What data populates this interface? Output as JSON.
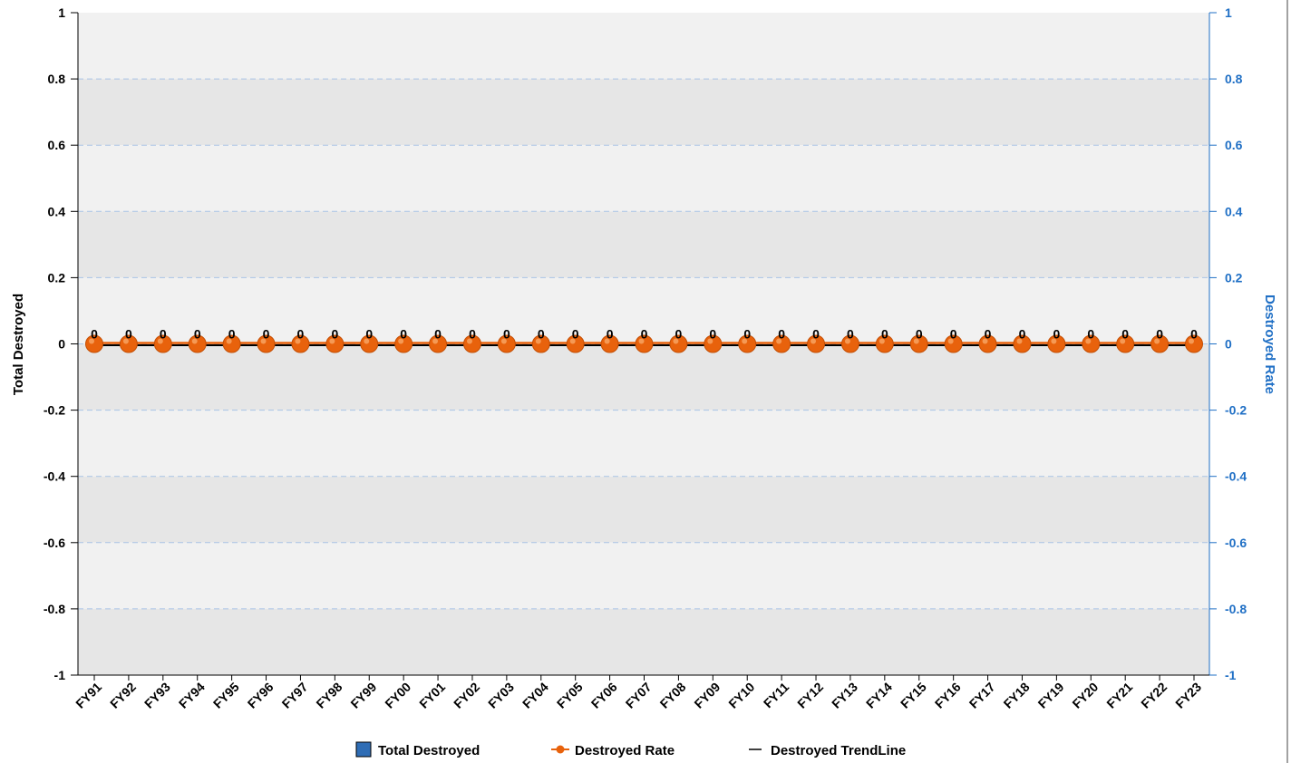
{
  "chart_data": {
    "type": "bar",
    "categories": [
      "FY91",
      "FY92",
      "FY93",
      "FY94",
      "FY95",
      "FY96",
      "FY97",
      "FY98",
      "FY99",
      "FY00",
      "FY01",
      "FY02",
      "FY03",
      "FY04",
      "FY05",
      "FY06",
      "FY07",
      "FY08",
      "FY09",
      "FY10",
      "FY11",
      "FY12",
      "FY13",
      "FY14",
      "FY15",
      "FY16",
      "FY17",
      "FY18",
      "FY19",
      "FY20",
      "FY21",
      "FY22",
      "FY23"
    ],
    "series": [
      {
        "name": "Total Destroyed",
        "type": "bar",
        "axis": "left",
        "color": "#2f6db5",
        "values": [
          0,
          0,
          0,
          0,
          0,
          0,
          0,
          0,
          0,
          0,
          0,
          0,
          0,
          0,
          0,
          0,
          0,
          0,
          0,
          0,
          0,
          0,
          0,
          0,
          0,
          0,
          0,
          0,
          0,
          0,
          0,
          0,
          0
        ]
      },
      {
        "name": "Destroyed Rate",
        "type": "line",
        "axis": "right",
        "color": "#e8620c",
        "values": [
          0,
          0,
          0,
          0,
          0,
          0,
          0,
          0,
          0,
          0,
          0,
          0,
          0,
          0,
          0,
          0,
          0,
          0,
          0,
          0,
          0,
          0,
          0,
          0,
          0,
          0,
          0,
          0,
          0,
          0,
          0,
          0,
          0
        ]
      },
      {
        "name": "Destroyed TrendLine",
        "type": "line",
        "axis": "left",
        "color": "#000000",
        "values": [
          0,
          0,
          0,
          0,
          0,
          0,
          0,
          0,
          0,
          0,
          0,
          0,
          0,
          0,
          0,
          0,
          0,
          0,
          0,
          0,
          0,
          0,
          0,
          0,
          0,
          0,
          0,
          0,
          0,
          0,
          0,
          0,
          0
        ]
      }
    ],
    "ylabel": "Total Destroyed",
    "y2label": "Destroyed Rate",
    "ylim": [
      -1,
      1
    ],
    "y2lim": [
      -1,
      1
    ],
    "yticks": [
      "1",
      "0.8",
      "0.6",
      "0.4",
      "0.2",
      "0",
      "-0.2",
      "-0.4",
      "-0.6",
      "-0.8",
      "-1"
    ],
    "y2ticks": [
      "1",
      "0.8",
      "0.6",
      "0.4",
      "0.2",
      "0",
      "-0.2",
      "-0.4",
      "-0.6",
      "-0.8",
      "-1"
    ],
    "data_labels": [
      "0",
      "0",
      "0",
      "0",
      "0",
      "0",
      "0",
      "0",
      "0",
      "0",
      "0",
      "0",
      "0",
      "0",
      "0",
      "0",
      "0",
      "0",
      "0",
      "0",
      "0",
      "0",
      "0",
      "0",
      "0",
      "0",
      "0",
      "0",
      "0",
      "0",
      "0",
      "0",
      "0"
    ],
    "legend": {
      "position": "bottom",
      "items": [
        {
          "label": "Total Destroyed",
          "symbol": "square",
          "color": "#2f6db5"
        },
        {
          "label": "Destroyed Rate",
          "symbol": "line-dot",
          "color": "#e8620c"
        },
        {
          "label": "Destroyed TrendLine",
          "symbol": "line",
          "color": "#000000"
        }
      ]
    },
    "grid": true,
    "colors": {
      "band_light": "#f1f1f1",
      "band_dark": "#e6e6e6",
      "grid": "#a9c4e6",
      "right_axis": "#1f6fc5"
    }
  }
}
